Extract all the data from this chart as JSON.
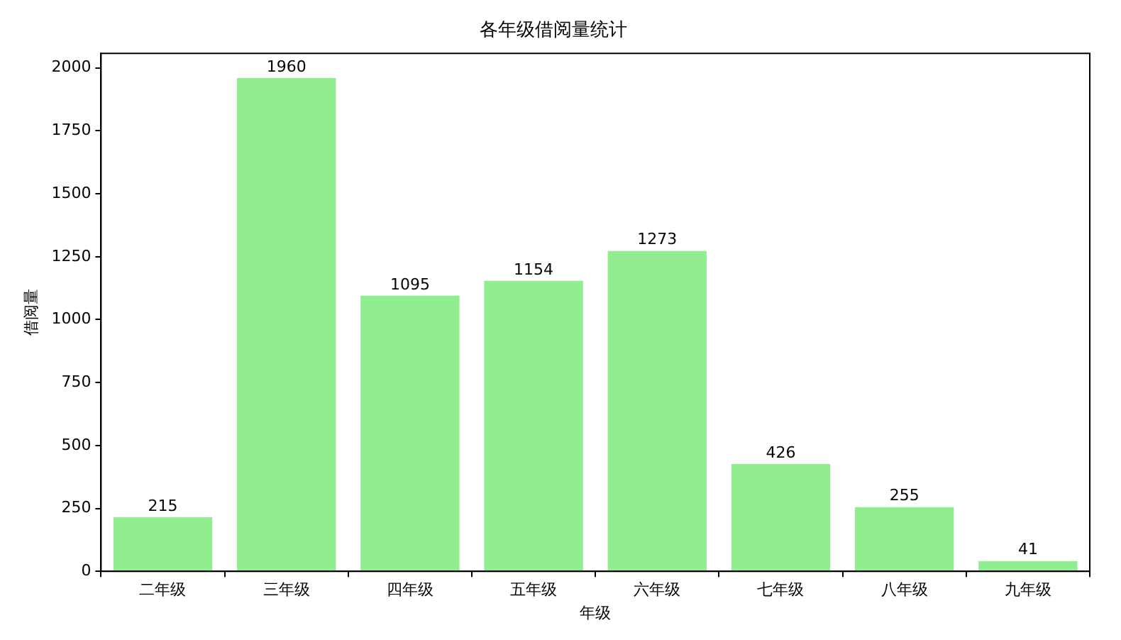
{
  "chart_data": {
    "type": "bar",
    "title": "各年级借阅量统计",
    "xlabel": "年级",
    "ylabel": "借阅量",
    "categories": [
      "二年级",
      "三年级",
      "四年级",
      "五年级",
      "六年级",
      "七年级",
      "八年级",
      "九年级"
    ],
    "values": [
      215,
      1960,
      1095,
      1154,
      1273,
      426,
      255,
      41
    ],
    "color": "#90ee90",
    "ylim": [
      0,
      2058
    ],
    "yticks": [
      0,
      250,
      500,
      750,
      1000,
      1250,
      1500,
      1750,
      2000
    ],
    "grid": false,
    "data_labels": true
  }
}
